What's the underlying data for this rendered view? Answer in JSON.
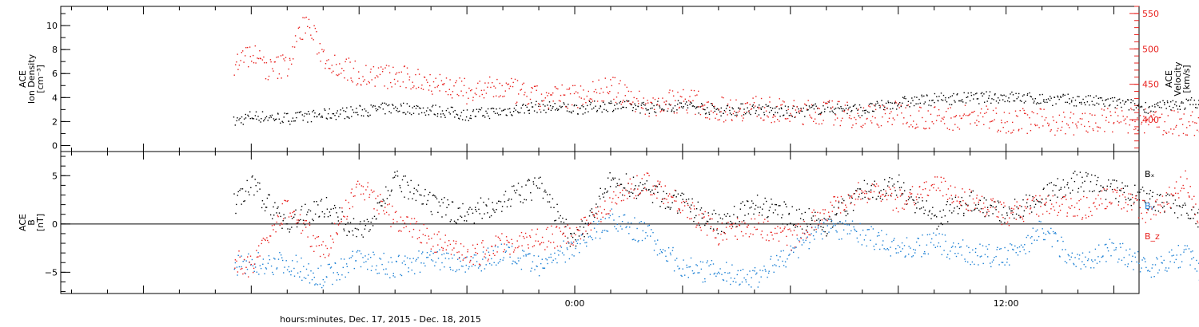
{
  "chart_data": [
    {
      "type": "scatter",
      "left_axis": {
        "label_lines": [
          "ACE",
          "Ion Density",
          "[cm⁻³]"
        ],
        "ylim": [
          -0.5,
          11.6
        ],
        "ticks": [
          0,
          2,
          4,
          6,
          8,
          10
        ]
      },
      "right_axis": {
        "label_lines": [
          "ACE",
          "Velocity",
          "[km/s]"
        ],
        "ylim": [
          355,
          560
        ],
        "ticks": [
          400,
          450,
          500,
          550
        ],
        "color": "#e8211e"
      },
      "series": [
        {
          "axis": "left",
          "color": "#000000",
          "x": [
            -9.5,
            -9,
            -8,
            -7,
            -6,
            -5,
            -4,
            -3,
            -2,
            -1,
            0,
            1,
            2,
            3,
            4,
            5,
            6,
            7,
            8,
            9,
            10,
            11,
            12,
            13,
            14,
            15,
            16,
            17,
            17.5
          ],
          "y": [
            2.0,
            2.5,
            2.3,
            2.6,
            2.9,
            3.2,
            3.0,
            2.6,
            2.9,
            3.3,
            3.1,
            3.4,
            3.2,
            3.4,
            3.0,
            3.1,
            2.8,
            3.2,
            3.0,
            3.6,
            3.9,
            4.0,
            4.1,
            3.9,
            3.8,
            3.6,
            3.2,
            3.5,
            3.8
          ]
        },
        {
          "axis": "right",
          "color": "#e8211e",
          "x": [
            -9.5,
            -9,
            -8.5,
            -8,
            -7.5,
            -7,
            -6.5,
            -6,
            -5,
            -4,
            -3,
            -2,
            -1,
            0,
            1,
            2,
            3,
            4,
            5,
            6,
            7,
            8,
            9,
            10,
            11,
            12,
            13,
            14,
            15,
            16,
            17,
            17.5
          ],
          "y": [
            480,
            495,
            470,
            480,
            540,
            490,
            475,
            465,
            460,
            455,
            440,
            445,
            430,
            435,
            445,
            420,
            430,
            415,
            418,
            410,
            412,
            405,
            410,
            402,
            405,
            400,
            398,
            395,
            400,
            398,
            395,
            395
          ]
        }
      ]
    },
    {
      "type": "scatter",
      "left_axis": {
        "label_lines": [
          "ACE",
          "B",
          "[nT]"
        ],
        "ylim": [
          -7.2,
          7.5
        ],
        "ticks": [
          -5,
          0,
          5
        ]
      },
      "legend": [
        "Bₓ",
        "Bᵧ",
        "B_z"
      ],
      "series": [
        {
          "name": "Bₓ",
          "color": "#000000",
          "x": [
            -9.5,
            -9,
            -8,
            -7,
            -6,
            -5,
            -4,
            -3,
            -2,
            -1,
            0,
            1,
            2,
            3,
            4,
            5,
            6,
            7,
            8,
            9,
            10,
            11,
            12,
            13,
            14,
            15,
            16,
            17,
            17.5
          ],
          "y": [
            2.0,
            4.0,
            0.0,
            2.0,
            -1.0,
            4.5,
            2.0,
            1.0,
            2.5,
            4.0,
            -2.0,
            4.5,
            3.5,
            2.0,
            0.0,
            2.0,
            1.0,
            0.0,
            3.5,
            4.0,
            0.5,
            2.5,
            1.0,
            3.0,
            4.5,
            3.5,
            2.5,
            1.5,
            0.0
          ]
        },
        {
          "name": "Bᵧ",
          "color": "#1a7fd4",
          "x": [
            -9.5,
            -9,
            -8,
            -7,
            -6,
            -5,
            -4,
            -3,
            -2,
            -1,
            0,
            1,
            2,
            3,
            4,
            5,
            6,
            7,
            8,
            9,
            10,
            11,
            12,
            13,
            14,
            15,
            16,
            17,
            17.5
          ],
          "y": [
            -4.5,
            -4.0,
            -4.0,
            -5.5,
            -3.5,
            -4.5,
            -3.5,
            -4.0,
            -3.0,
            -4.5,
            -2.0,
            0.5,
            -1.0,
            -4.5,
            -5.0,
            -5.5,
            -3.0,
            0.0,
            -1.0,
            -2.5,
            -2.0,
            -3.0,
            -3.5,
            -0.5,
            -4.0,
            -2.5,
            -4.5,
            -3.0,
            -5.5
          ]
        },
        {
          "name": "B_z",
          "color": "#e8211e",
          "x": [
            -9.5,
            -9,
            -8,
            -7,
            -6,
            -5,
            -4,
            -3,
            -2,
            -1,
            0,
            1,
            2,
            3,
            4,
            5,
            6,
            7,
            8,
            9,
            10,
            11,
            12,
            13,
            14,
            15,
            16,
            17,
            17.5
          ],
          "y": [
            -3.5,
            -4.5,
            2.0,
            -3.0,
            4.0,
            0.5,
            -1.5,
            -3.5,
            -2.0,
            -1.5,
            -1.0,
            2.5,
            4.5,
            2.0,
            -1.0,
            0.0,
            -1.5,
            1.5,
            3.5,
            2.5,
            4.0,
            2.5,
            1.0,
            2.0,
            1.5,
            3.0,
            1.0,
            4.5,
            -1.0
          ]
        }
      ]
    }
  ],
  "x_axis": {
    "range_hours": [
      -14.3,
      15.7
    ],
    "labels": [
      {
        "hour": 0,
        "text": "0:00"
      },
      {
        "hour": 12,
        "text": "12:00"
      }
    ],
    "title": "hours:minutes, Dec. 17, 2015 - Dec. 18, 2015"
  }
}
